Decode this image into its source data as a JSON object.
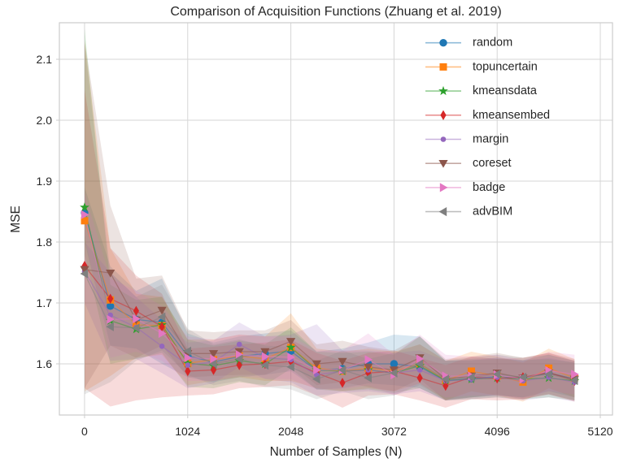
{
  "chart_data": {
    "type": "line",
    "title": "Comparison of Acquisition Functions (Zhuang et al. 2019)",
    "xlabel": "Number of Samples (N)",
    "ylabel": "MSE",
    "xlim": [
      -250,
      5241
    ],
    "ylim": [
      1.516,
      2.16
    ],
    "xticks": [
      0,
      1024,
      2048,
      3072,
      4096,
      5120
    ],
    "yticks": [
      1.6,
      1.7,
      1.8,
      1.9,
      2.0,
      2.1
    ],
    "grid": true,
    "legend_position": "upper right",
    "band_opacity": 0.17,
    "line_opacity": 0.5,
    "x": [
      0,
      256,
      512,
      768,
      1024,
      1280,
      1536,
      1792,
      2048,
      2304,
      2560,
      2816,
      3072,
      3328,
      3584,
      3840,
      4096,
      4352,
      4608,
      4864
    ],
    "series": [
      {
        "name": "random",
        "color": "#1f77b4",
        "marker": "circle",
        "values": [
          1.848,
          1.695,
          1.673,
          1.668,
          1.613,
          1.603,
          1.612,
          1.617,
          1.621,
          1.589,
          1.592,
          1.6,
          1.6,
          1.595,
          1.572,
          1.576,
          1.579,
          1.576,
          1.585,
          1.575
        ],
        "band_upper": [
          1.89,
          1.76,
          1.72,
          1.74,
          1.65,
          1.635,
          1.645,
          1.65,
          1.655,
          1.62,
          1.625,
          1.635,
          1.648,
          1.645,
          1.605,
          1.608,
          1.61,
          1.606,
          1.615,
          1.605
        ],
        "band_lower": [
          1.8,
          1.63,
          1.625,
          1.6,
          1.578,
          1.57,
          1.578,
          1.582,
          1.588,
          1.558,
          1.56,
          1.568,
          1.565,
          1.56,
          1.54,
          1.545,
          1.548,
          1.545,
          1.555,
          1.545
        ]
      },
      {
        "name": "topuncertain",
        "color": "#ff7f0e",
        "marker": "square",
        "values": [
          1.835,
          1.705,
          1.664,
          1.663,
          1.601,
          1.607,
          1.613,
          1.608,
          1.627,
          1.593,
          1.588,
          1.593,
          1.588,
          1.6,
          1.573,
          1.588,
          1.58,
          1.57,
          1.593,
          1.577
        ],
        "band_upper": [
          2.13,
          1.79,
          1.715,
          1.71,
          1.64,
          1.64,
          1.648,
          1.645,
          1.683,
          1.625,
          1.62,
          1.625,
          1.62,
          1.632,
          1.605,
          1.62,
          1.612,
          1.602,
          1.625,
          1.608
        ],
        "band_lower": [
          1.555,
          1.58,
          1.61,
          1.615,
          1.565,
          1.572,
          1.578,
          1.572,
          1.572,
          1.56,
          1.555,
          1.56,
          1.555,
          1.568,
          1.54,
          1.555,
          1.548,
          1.538,
          1.56,
          1.545
        ]
      },
      {
        "name": "kmeansdata",
        "color": "#2ca02c",
        "marker": "star",
        "values": [
          1.857,
          1.671,
          1.657,
          1.664,
          1.601,
          1.597,
          1.605,
          1.6,
          1.627,
          1.59,
          1.588,
          1.59,
          1.585,
          1.597,
          1.573,
          1.575,
          1.577,
          1.575,
          1.577,
          1.572
        ],
        "band_upper": [
          2.15,
          1.73,
          1.705,
          1.71,
          1.64,
          1.63,
          1.638,
          1.632,
          1.66,
          1.62,
          1.618,
          1.62,
          1.615,
          1.645,
          1.605,
          1.606,
          1.608,
          1.606,
          1.608,
          1.602
        ],
        "band_lower": [
          1.78,
          1.6,
          1.608,
          1.618,
          1.562,
          1.56,
          1.57,
          1.565,
          1.592,
          1.558,
          1.555,
          1.558,
          1.552,
          1.56,
          1.54,
          1.542,
          1.545,
          1.542,
          1.545,
          1.54
        ]
      },
      {
        "name": "kmeansembed",
        "color": "#d62728",
        "marker": "thin-diamond",
        "values": [
          1.761,
          1.707,
          1.687,
          1.661,
          1.588,
          1.59,
          1.598,
          1.6,
          1.604,
          1.585,
          1.569,
          1.585,
          1.588,
          1.577,
          1.564,
          1.578,
          1.576,
          1.578,
          1.586,
          1.572
        ],
        "band_upper": [
          2.05,
          1.79,
          1.745,
          1.715,
          1.625,
          1.628,
          1.632,
          1.635,
          1.64,
          1.618,
          1.605,
          1.618,
          1.622,
          1.61,
          1.598,
          1.612,
          1.608,
          1.61,
          1.618,
          1.605
        ],
        "band_lower": [
          1.56,
          1.53,
          1.54,
          1.545,
          1.548,
          1.55,
          1.56,
          1.562,
          1.565,
          1.548,
          1.528,
          1.548,
          1.55,
          1.54,
          1.528,
          1.542,
          1.54,
          1.542,
          1.55,
          1.538
        ]
      },
      {
        "name": "margin",
        "color": "#9467bd",
        "marker": "dot",
        "values": [
          1.752,
          1.68,
          1.66,
          1.629,
          1.598,
          1.603,
          1.632,
          1.61,
          1.607,
          1.582,
          1.588,
          1.59,
          1.585,
          1.59,
          1.572,
          1.575,
          1.578,
          1.572,
          1.578,
          1.57
        ],
        "band_upper": [
          1.8,
          1.75,
          1.71,
          1.672,
          1.635,
          1.638,
          1.668,
          1.645,
          1.648,
          1.665,
          1.622,
          1.622,
          1.618,
          1.622,
          1.605,
          1.606,
          1.61,
          1.605,
          1.61,
          1.602
        ],
        "band_lower": [
          1.7,
          1.605,
          1.608,
          1.585,
          1.56,
          1.568,
          1.595,
          1.575,
          1.57,
          1.548,
          1.552,
          1.555,
          1.55,
          1.555,
          1.54,
          1.542,
          1.545,
          1.54,
          1.545,
          1.538
        ]
      },
      {
        "name": "coreset",
        "color": "#8c564b",
        "marker": "triangle-down",
        "values": [
          1.755,
          1.749,
          1.672,
          1.688,
          1.617,
          1.617,
          1.62,
          1.62,
          1.637,
          1.6,
          1.604,
          1.595,
          1.59,
          1.61,
          1.575,
          1.58,
          1.585,
          1.577,
          1.585,
          1.575
        ],
        "band_upper": [
          2.13,
          1.86,
          1.74,
          1.745,
          1.655,
          1.652,
          1.655,
          1.655,
          1.672,
          1.632,
          1.638,
          1.628,
          1.622,
          1.645,
          1.608,
          1.612,
          1.618,
          1.61,
          1.618,
          1.608
        ],
        "band_lower": [
          1.56,
          1.63,
          1.61,
          1.63,
          1.578,
          1.58,
          1.582,
          1.582,
          1.6,
          1.565,
          1.57,
          1.562,
          1.555,
          1.575,
          1.54,
          1.545,
          1.55,
          1.542,
          1.55,
          1.54
        ]
      },
      {
        "name": "badge",
        "color": "#e377c2",
        "marker": "triangle-right",
        "values": [
          1.845,
          1.673,
          1.674,
          1.65,
          1.61,
          1.608,
          1.615,
          1.612,
          1.611,
          1.59,
          1.59,
          1.607,
          1.582,
          1.608,
          1.58,
          1.58,
          1.582,
          1.575,
          1.589,
          1.583
        ],
        "band_upper": [
          1.88,
          1.74,
          1.72,
          1.695,
          1.645,
          1.64,
          1.648,
          1.645,
          1.645,
          1.622,
          1.622,
          1.65,
          1.615,
          1.648,
          1.615,
          1.612,
          1.615,
          1.606,
          1.62,
          1.615
        ],
        "band_lower": [
          1.81,
          1.61,
          1.62,
          1.605,
          1.572,
          1.572,
          1.58,
          1.576,
          1.575,
          1.558,
          1.558,
          1.565,
          1.548,
          1.568,
          1.545,
          1.548,
          1.548,
          1.542,
          1.555,
          1.55
        ]
      },
      {
        "name": "advBIM",
        "color": "#7f7f7f",
        "marker": "triangle-left",
        "values": [
          1.748,
          1.661,
          1.659,
          1.677,
          1.621,
          1.6,
          1.608,
          1.598,
          1.595,
          1.575,
          1.59,
          1.577,
          1.585,
          1.6,
          1.575,
          1.578,
          1.583,
          1.578,
          1.583,
          1.573
        ],
        "band_upper": [
          2.125,
          1.75,
          1.71,
          1.73,
          1.658,
          1.632,
          1.64,
          1.63,
          1.628,
          1.605,
          1.622,
          1.608,
          1.618,
          1.632,
          1.606,
          1.61,
          1.615,
          1.61,
          1.615,
          1.605
        ],
        "band_lower": [
          1.55,
          1.57,
          1.605,
          1.622,
          1.582,
          1.565,
          1.572,
          1.562,
          1.558,
          1.542,
          1.555,
          1.542,
          1.548,
          1.565,
          1.542,
          1.545,
          1.548,
          1.545,
          1.55,
          1.54
        ]
      }
    ]
  }
}
